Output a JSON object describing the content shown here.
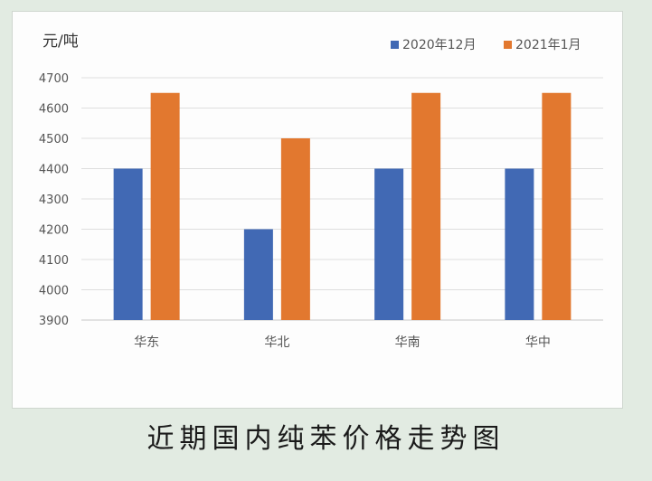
{
  "caption": "近期国内纯苯价格走势图",
  "chart_data": {
    "type": "bar",
    "title": "",
    "xlabel": "",
    "ylabel": "元/吨",
    "categories": [
      "华东",
      "华北",
      "华南",
      "华中"
    ],
    "series": [
      {
        "name": "2020年12月",
        "values": [
          4400,
          4200,
          4400,
          4400
        ],
        "color": "#4169b4"
      },
      {
        "name": "2021年1月",
        "values": [
          4650,
          4500,
          4650,
          4650
        ],
        "color": "#e2782f"
      }
    ],
    "ylim": [
      3900,
      4700
    ],
    "yticks": [
      3900,
      4000,
      4100,
      4200,
      4300,
      4400,
      4500,
      4600,
      4700
    ],
    "grid": true,
    "legend_position": "top-right"
  }
}
